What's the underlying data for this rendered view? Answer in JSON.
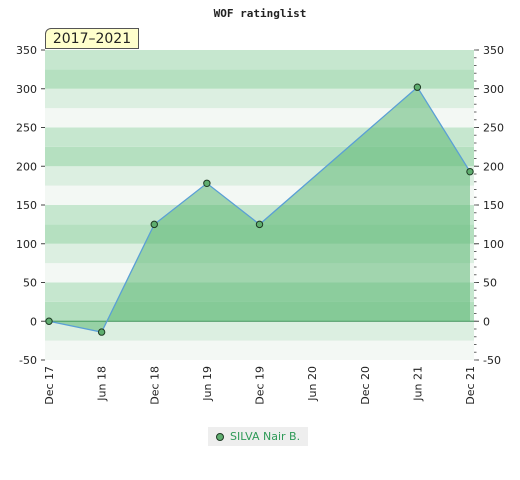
{
  "chart_data": {
    "type": "area",
    "title": "WOF ratinglist",
    "period_label": "2017–2021",
    "x": [
      "Dec 17",
      "Jun 18",
      "Dec 18",
      "Jun 19",
      "Dec 19",
      "Jun 20",
      "Dec 20",
      "Jun 21",
      "Dec 21"
    ],
    "series": [
      {
        "name": "SILVA Nair B.",
        "points": [
          {
            "x": "Dec 17",
            "y": 0
          },
          {
            "x": "Jun 18",
            "y": -14
          },
          {
            "x": "Dec 18",
            "y": 125
          },
          {
            "x": "Jun 19",
            "y": 178
          },
          {
            "x": "Dec 19",
            "y": 125
          },
          {
            "x": "Jun 21",
            "y": 302
          },
          {
            "x": "Dec 21",
            "y": 193
          }
        ]
      }
    ],
    "yticks": [
      -50,
      0,
      50,
      100,
      150,
      200,
      250,
      300,
      350
    ],
    "ylim": [
      -50,
      350
    ],
    "y_axis_both_sides": true,
    "legend_position": "bottom-center",
    "colors": {
      "area_fill": "#5cb874",
      "line": "#5a9fd6",
      "marker_fill": "#5fae6f",
      "legend_text": "#2e9a57",
      "period_bg": "#ffffcc"
    }
  }
}
